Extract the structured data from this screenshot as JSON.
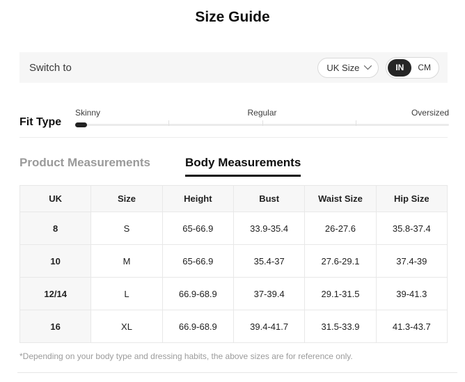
{
  "page": {
    "title": "Size Guide"
  },
  "switch_bar": {
    "label": "Switch to",
    "region_selector": {
      "value": "UK Size"
    },
    "unit_toggle": {
      "options": [
        "IN",
        "CM"
      ],
      "selected": "IN"
    }
  },
  "fit_type": {
    "label": "Fit Type",
    "options": [
      "Skinny",
      "Regular",
      "Oversized"
    ],
    "selected": "Skinny"
  },
  "tabs": [
    {
      "label": "Product Measurements",
      "active": false
    },
    {
      "label": "Body Measurements",
      "active": true
    }
  ],
  "table": {
    "columns": [
      "UK",
      "Size",
      "Height",
      "Bust",
      "Waist Size",
      "Hip Size"
    ],
    "rows": [
      [
        "8",
        "S",
        "65-66.9",
        "33.9-35.4",
        "26-27.6",
        "35.8-37.4"
      ],
      [
        "10",
        "M",
        "65-66.9",
        "35.4-37",
        "27.6-29.1",
        "37.4-39"
      ],
      [
        "12/14",
        "L",
        "66.9-68.9",
        "37-39.4",
        "29.1-31.5",
        "39-41.3"
      ],
      [
        "16",
        "XL",
        "66.9-68.9",
        "39.4-41.7",
        "31.5-33.9",
        "41.3-43.7"
      ]
    ]
  },
  "footnote": "*Depending on your body type and dressing habits, the above sizes are for reference only.",
  "colors": {
    "accent_dark": "#262626",
    "bar_bg": "#f6f6f6",
    "table_header_bg": "#f7f7f7",
    "border": "#e8e8e8",
    "inactive_text": "#9a9a9a"
  }
}
